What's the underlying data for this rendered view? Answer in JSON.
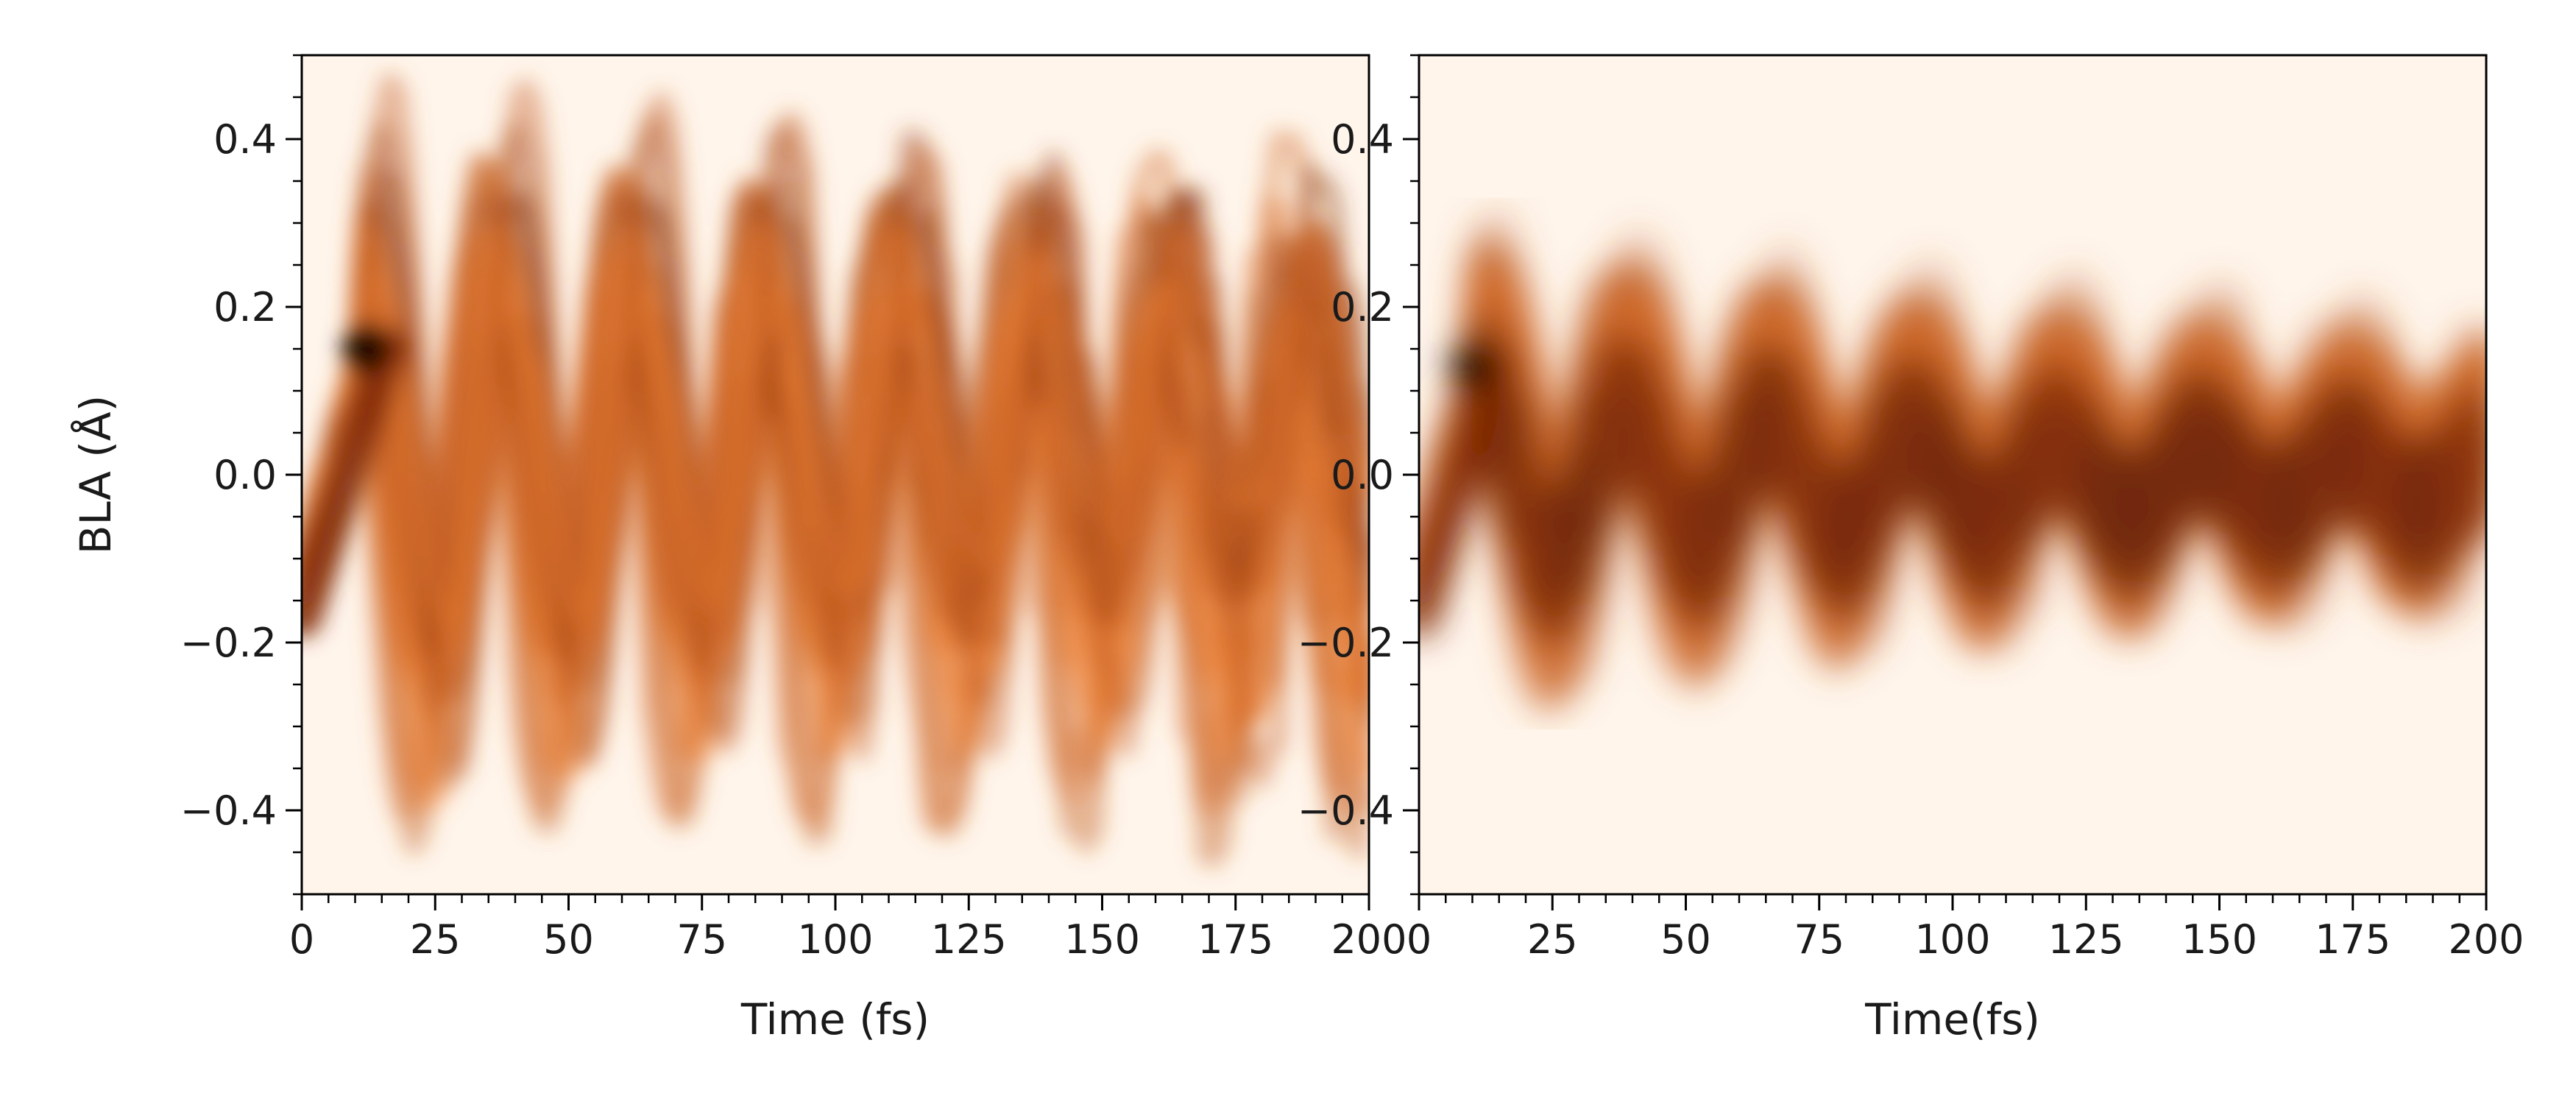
{
  "chart_data": [
    {
      "type": "heatmap",
      "title": "",
      "xlabel": "Time (fs)",
      "ylabel": "BLA (Å)",
      "xlim": [
        0,
        200
      ],
      "ylim": [
        -0.5,
        0.5
      ],
      "x_ticks": [
        0,
        25,
        50,
        75,
        100,
        125,
        150,
        175,
        200
      ],
      "x_tick_labels": [
        "0",
        "25",
        "50",
        "75",
        "100",
        "125",
        "150",
        "175",
        "200"
      ],
      "y_ticks": [
        -0.4,
        -0.2,
        0.0,
        0.2,
        0.4
      ],
      "y_tick_labels": [
        "−0.4",
        "−0.2",
        "0.0",
        "0.2",
        "0.4"
      ],
      "colormap": "Oranges",
      "colors": {
        "low": "#fff5eb",
        "mid": "#fd8d3c",
        "high": "#7f2704",
        "peak": "#1a0500"
      },
      "grid": false,
      "density": {
        "description_of_features": "oscillating trajectory bundles",
        "peak": {
          "time": 12,
          "bla": 0.15
        },
        "oscillation_period_fs": 25,
        "amplitude_bla": 0.3,
        "spread": "narrow, individually resolved trajectories"
      }
    },
    {
      "type": "heatmap",
      "title": "",
      "xlabel": "Time(fs)",
      "ylabel": "",
      "xlim": [
        0,
        200
      ],
      "ylim": [
        -0.5,
        0.5
      ],
      "x_ticks": [
        0,
        25,
        50,
        75,
        100,
        125,
        150,
        175,
        200
      ],
      "x_tick_labels": [
        "0",
        "25",
        "50",
        "75",
        "100",
        "125",
        "150",
        "175",
        "200"
      ],
      "y_ticks": [
        -0.4,
        -0.2,
        0.0,
        0.2,
        0.4
      ],
      "y_tick_labels": [
        "−0.4",
        "−0.2",
        "0.0",
        "0.2",
        "0.4"
      ],
      "colormap": "Oranges",
      "colors": {
        "low": "#fff5eb",
        "mid": "#fd8d3c",
        "high": "#7f2704",
        "peak": "#1a0500"
      },
      "grid": false,
      "density": {
        "peak": {
          "time": 10,
          "bla": 0.13
        },
        "oscillation_period_fs": 27,
        "amplitude_bla": 0.15,
        "spread": "broad, damped toward 0.0"
      }
    }
  ]
}
